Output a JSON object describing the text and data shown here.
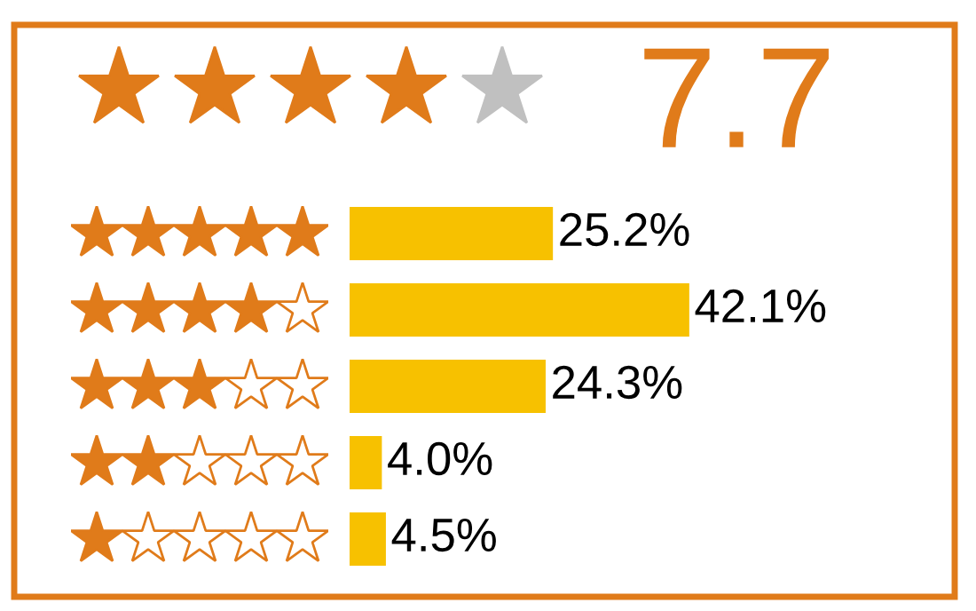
{
  "chart_data": {
    "type": "bar",
    "orientation": "horizontal",
    "title": "7.7",
    "categories": [
      null,
      null,
      null,
      null,
      null
    ],
    "values": [
      25.2,
      42.1,
      24.3,
      4.0,
      4.5
    ],
    "value_labels": [
      "25.2%",
      "42.1%",
      "24.3%",
      "4.0%",
      "4.5%"
    ],
    "color": "#f7c100"
  }
}
